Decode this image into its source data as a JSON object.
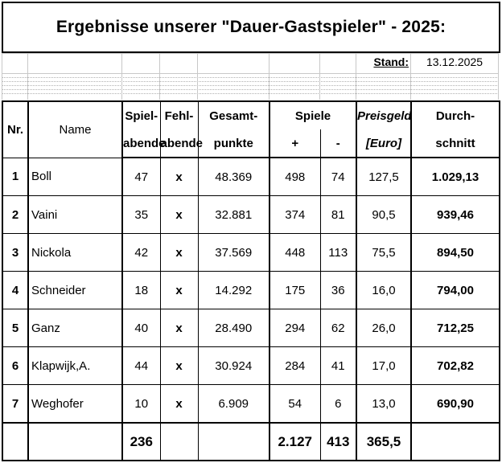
{
  "title": "Ergebnisse unserer \"Dauer-Gastspieler\"  -  2025:",
  "stand": {
    "label": "Stand:",
    "date": "13.12.2025"
  },
  "headers": {
    "nr": "Nr.",
    "name": "Name",
    "spiel_top": "Spiel-",
    "spiel_bottom": "abende",
    "fehl_top": "Fehl-",
    "fehl_bottom": "abende",
    "gesamt_top": "Gesamt-",
    "gesamt_bottom": "punkte",
    "spiele": "Spiele",
    "plus": "+",
    "minus": "-",
    "preis_top": "Preisgeld",
    "preis_bottom": "[Euro]",
    "durch_top": "Durch-",
    "durch_bottom": "schnitt"
  },
  "rows": [
    {
      "nr": "1",
      "name": "Boll",
      "spielabende": "47",
      "fehlabende": "x",
      "punkte": "48.369",
      "plus": "498",
      "minus": "74",
      "preisgeld": "127,5",
      "schnitt": "1.029,13"
    },
    {
      "nr": "2",
      "name": "Vaini",
      "spielabende": "35",
      "fehlabende": "x",
      "punkte": "32.881",
      "plus": "374",
      "minus": "81",
      "preisgeld": "90,5",
      "schnitt": "939,46"
    },
    {
      "nr": "3",
      "name": "Nickola",
      "spielabende": "42",
      "fehlabende": "x",
      "punkte": "37.569",
      "plus": "448",
      "minus": "113",
      "preisgeld": "75,5",
      "schnitt": "894,50"
    },
    {
      "nr": "4",
      "name": "Schneider",
      "spielabende": "18",
      "fehlabende": "x",
      "punkte": "14.292",
      "plus": "175",
      "minus": "36",
      "preisgeld": "16,0",
      "schnitt": "794,00"
    },
    {
      "nr": "5",
      "name": "Ganz",
      "spielabende": "40",
      "fehlabende": "x",
      "punkte": "28.490",
      "plus": "294",
      "minus": "62",
      "preisgeld": "26,0",
      "schnitt": "712,25"
    },
    {
      "nr": "6",
      "name": "Klapwijk,A.",
      "spielabende": "44",
      "fehlabende": "x",
      "punkte": "30.924",
      "plus": "284",
      "minus": "41",
      "preisgeld": "17,0",
      "schnitt": "702,82"
    },
    {
      "nr": "7",
      "name": "Weghofer",
      "spielabende": "10",
      "fehlabende": "x",
      "punkte": "6.909",
      "plus": "54",
      "minus": "6",
      "preisgeld": "13,0",
      "schnitt": "690,90"
    }
  ],
  "totals": {
    "spielabende": "236",
    "plus": "2.127",
    "minus": "413",
    "preisgeld": "365,5"
  }
}
